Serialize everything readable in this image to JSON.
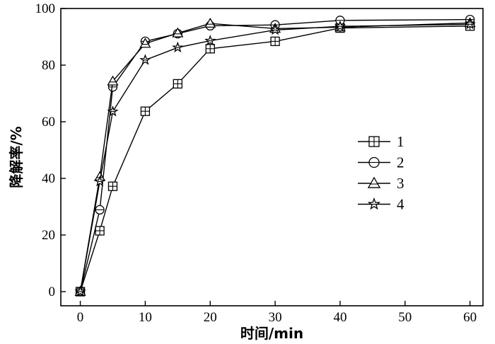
{
  "chart_data": {
    "type": "line",
    "title": "",
    "xlabel": "时间/min",
    "ylabel": "降解率/%",
    "xlim": [
      -3,
      62
    ],
    "ylim": [
      -5,
      100
    ],
    "xticks": [
      0,
      10,
      20,
      30,
      40,
      50,
      60
    ],
    "yticks": [
      0,
      20,
      40,
      60,
      80,
      100
    ],
    "grid": false,
    "legend_position": "center-right",
    "series": [
      {
        "name": "1",
        "marker": "square",
        "x": [
          0,
          3,
          5,
          10,
          15,
          20,
          30,
          40,
          60
        ],
        "y": [
          0,
          21.5,
          37.2,
          63.7,
          73.4,
          85.8,
          88.4,
          93.1,
          93.8
        ]
      },
      {
        "name": "2",
        "marker": "circle",
        "x": [
          0,
          3,
          5,
          10,
          15,
          20,
          30,
          40,
          60
        ],
        "y": [
          0,
          28.9,
          72.3,
          88.4,
          91.1,
          93.9,
          94.2,
          95.8,
          96.1
        ]
      },
      {
        "name": "3",
        "marker": "triangle",
        "x": [
          0,
          3,
          5,
          10,
          15,
          20,
          30,
          40,
          60
        ],
        "y": [
          0,
          40.5,
          74.3,
          87.6,
          91.3,
          94.7,
          92.9,
          93.4,
          94.9
        ]
      },
      {
        "name": "4",
        "marker": "star",
        "x": [
          0,
          3,
          5,
          10,
          15,
          20,
          30,
          40,
          60
        ],
        "y": [
          0,
          38.9,
          63.6,
          81.8,
          86.2,
          88.6,
          92.4,
          93.7,
          94.4
        ]
      }
    ]
  }
}
